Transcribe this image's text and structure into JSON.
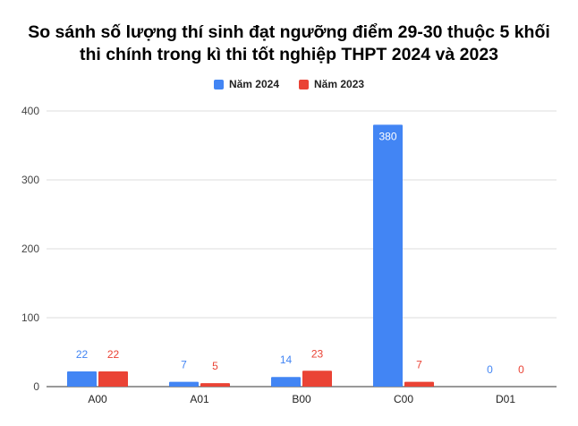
{
  "colors": {
    "series_2024": "#4285f4",
    "series_2023": "#ea4335",
    "grid": "#dddddd",
    "axis": "#333333"
  },
  "chart_data": {
    "type": "bar",
    "title_line1": "So sánh số lượng thí sinh đạt ngưỡng điểm 29-30 thuộc 5 khối",
    "title_line2": "thi chính trong kì thi tốt nghiệp THPT 2024 và 2023",
    "categories": [
      "A00",
      "A01",
      "B00",
      "C00",
      "D01"
    ],
    "series": [
      {
        "name": "Năm 2024",
        "values": [
          22,
          7,
          14,
          380,
          0
        ],
        "color": "#4285f4"
      },
      {
        "name": "Năm 2023",
        "values": [
          22,
          5,
          23,
          7,
          0
        ],
        "color": "#ea4335"
      }
    ],
    "ylim": [
      0,
      400
    ],
    "yticks": [
      0,
      100,
      200,
      300,
      400
    ],
    "grid": true,
    "legend_position": "top-center",
    "xlabel": "",
    "ylabel": ""
  }
}
